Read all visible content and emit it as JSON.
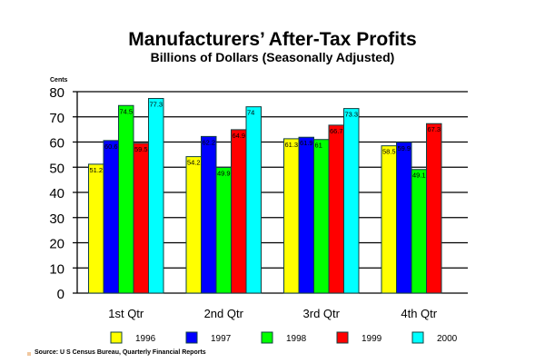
{
  "chart_data": {
    "type": "bar",
    "title": "Manufacturers’ After-Tax Profits",
    "subtitle": "Billions of Dollars (Seasonally Adjusted)",
    "ylabel": "Cents",
    "xlabel": "",
    "ylim": [
      0,
      80
    ],
    "yticks": [
      0,
      10,
      20,
      30,
      40,
      50,
      60,
      70,
      80
    ],
    "grid": true,
    "legend_position": "bottom",
    "categories": [
      "1st Qtr",
      "2nd Qtr",
      "3rd Qtr",
      "4th Qtr"
    ],
    "series": [
      {
        "name": "1996",
        "color": "#ffff00",
        "values": [
          51.2,
          54.2,
          61.3,
          58.5
        ],
        "labels": [
          "51.2",
          "54.2",
          "61.3",
          "58.5"
        ]
      },
      {
        "name": "1997",
        "color": "#0000ff",
        "values": [
          60.6,
          62.2,
          61.9,
          59.9
        ],
        "labels": [
          "60.6",
          "62.2",
          "61.9",
          "59.9"
        ]
      },
      {
        "name": "1998",
        "color": "#00ff00",
        "values": [
          74.5,
          49.9,
          61,
          49.1
        ],
        "labels": [
          "74.5",
          "49.9",
          "61",
          "49.1"
        ]
      },
      {
        "name": "1999",
        "color": "#ff0000",
        "values": [
          59.5,
          64.9,
          66.7,
          67.3
        ],
        "labels": [
          "59.5",
          "64.9",
          "66.7",
          "67.3"
        ]
      },
      {
        "name": "2000",
        "color": "#00ffff",
        "values": [
          77.3,
          74,
          73.3,
          null
        ],
        "labels": [
          "77.3",
          "74",
          "73.3",
          ""
        ]
      }
    ]
  },
  "source": "Source: U S Census Bureau, Quarterly Financial Reports"
}
